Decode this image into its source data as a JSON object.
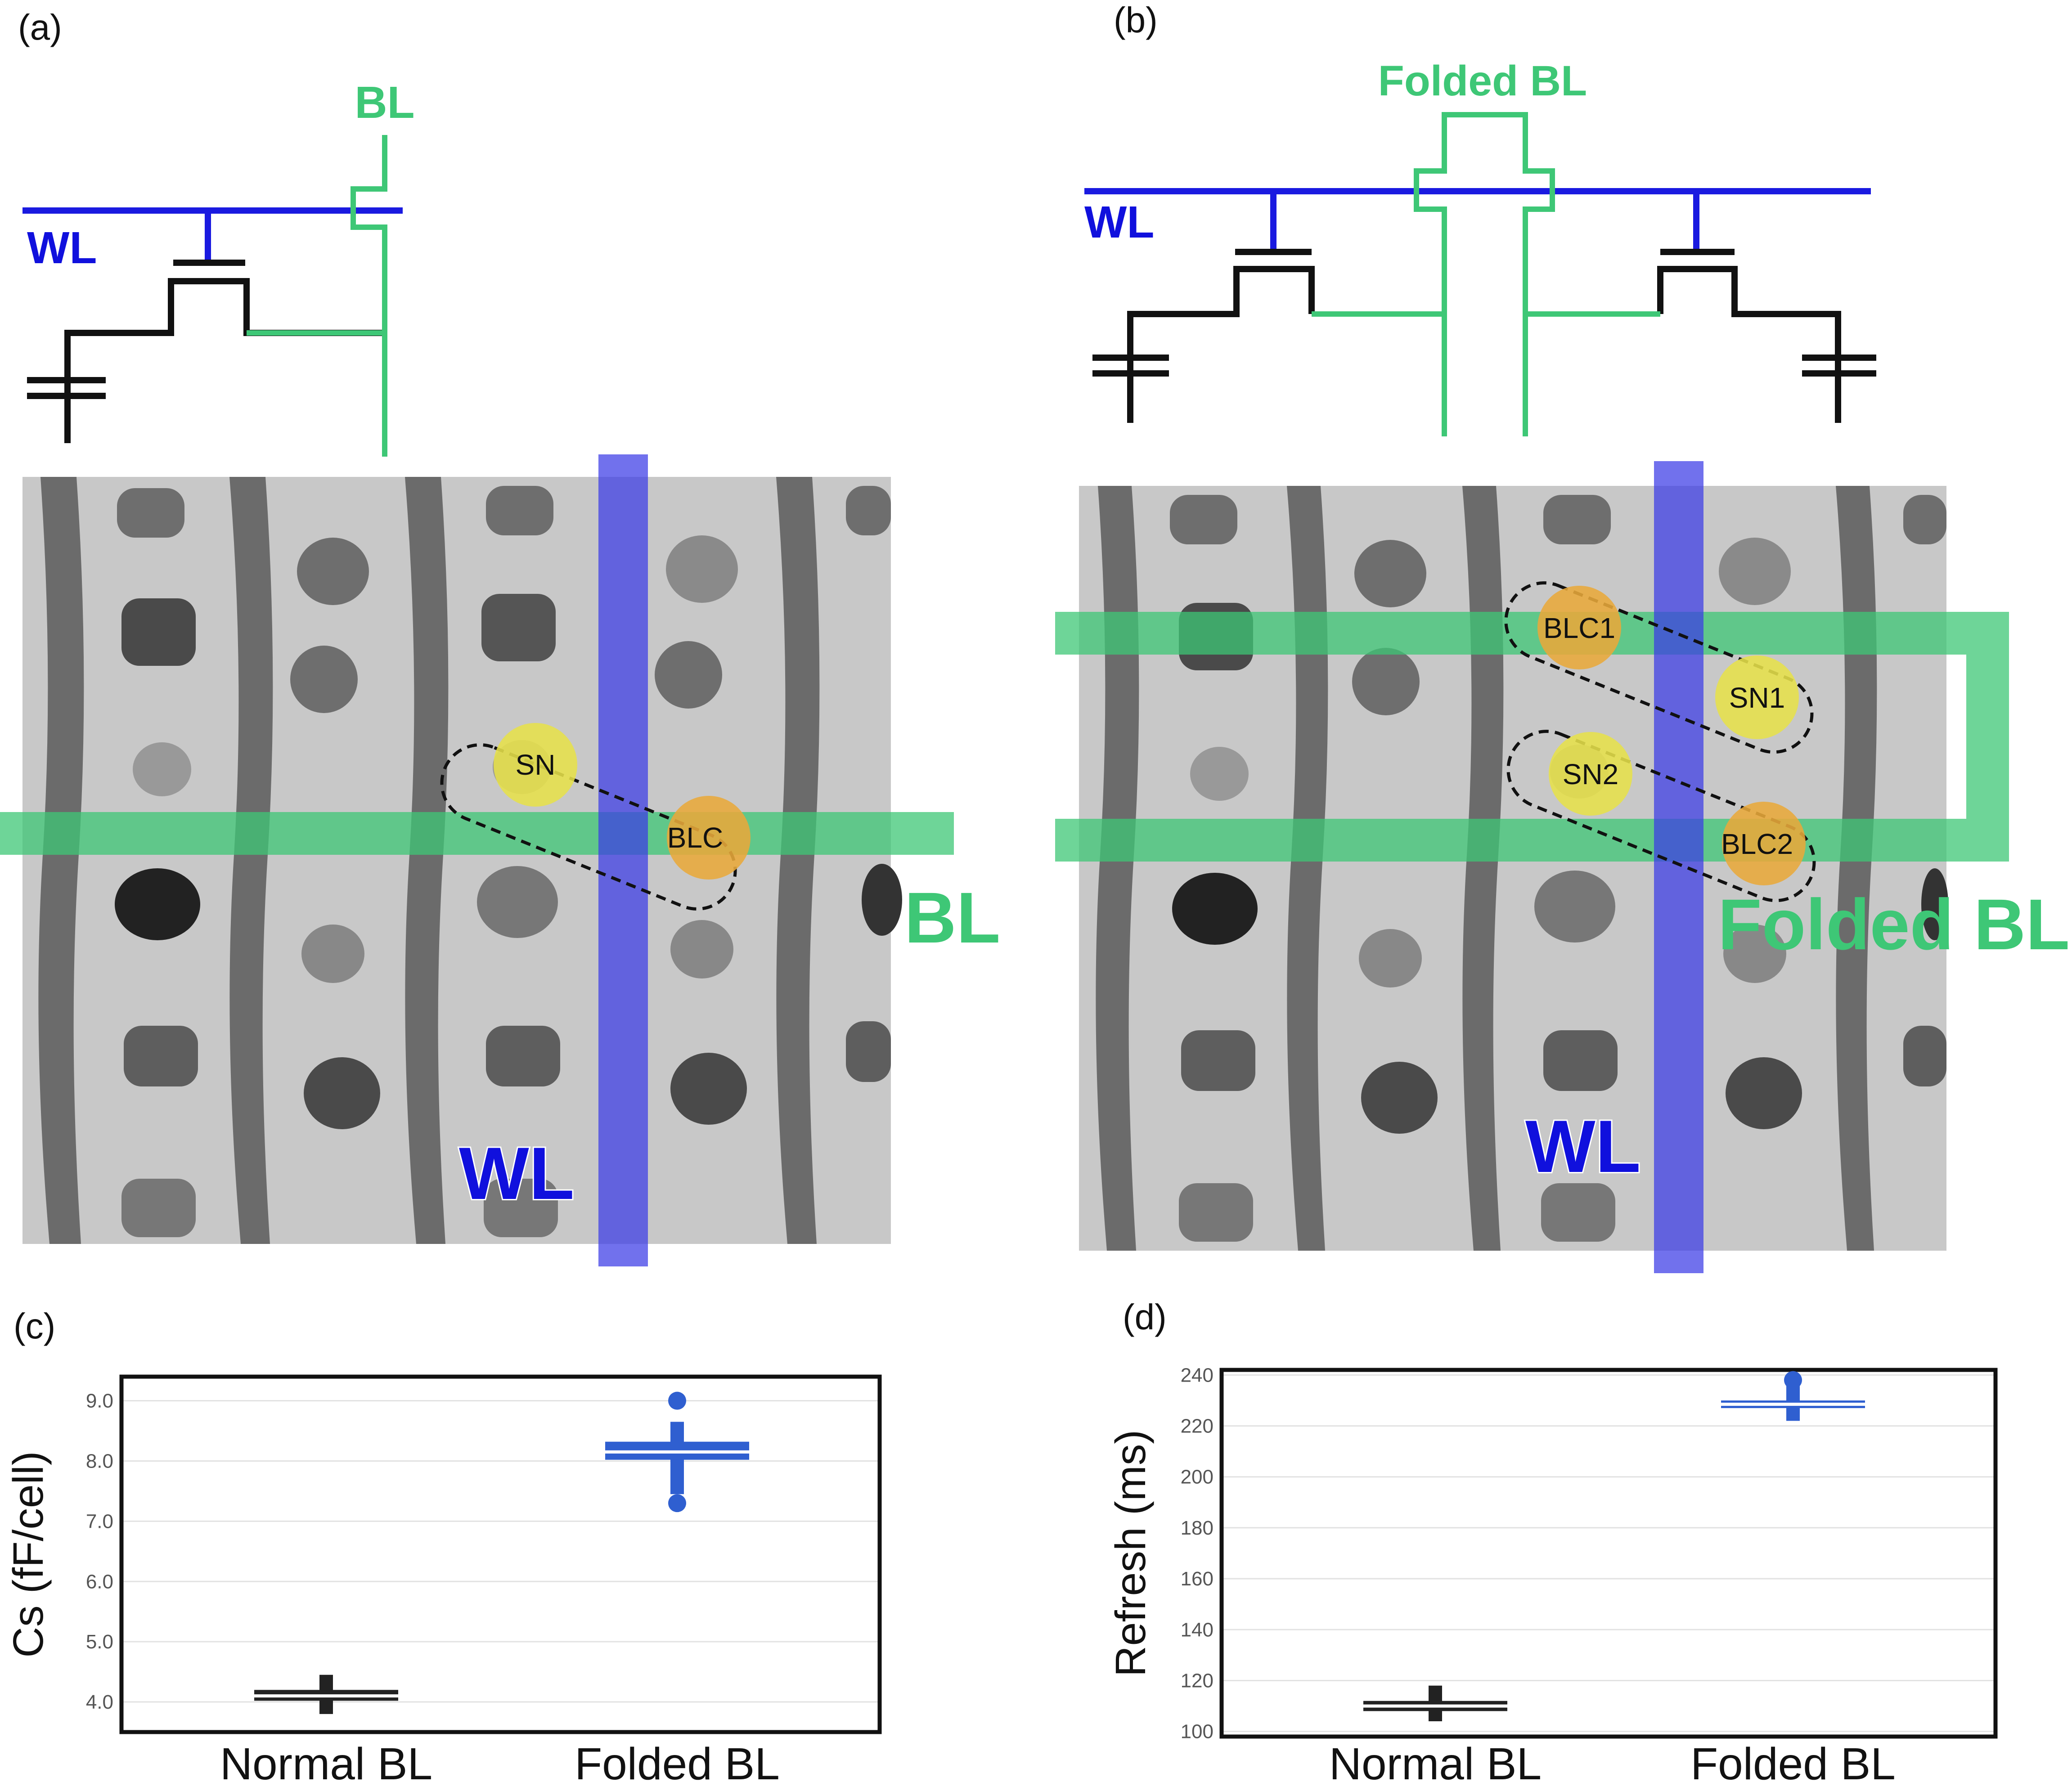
{
  "panels": {
    "a": {
      "label": "(a)",
      "schematic": {
        "bl_label": "BL",
        "wl_label": "WL"
      },
      "micrograph": {
        "sn_label": "SN",
        "blc_label": "BLC",
        "bl_label": "BL",
        "wl_label": "WL"
      }
    },
    "b": {
      "label": "(b)",
      "schematic": {
        "bl_label": "Folded BL",
        "wl_label": "WL"
      },
      "micrograph": {
        "blc1_label": "BLC1",
        "sn1_label": "SN1",
        "sn2_label": "SN2",
        "blc2_label": "BLC2",
        "bl_label": "Folded BL",
        "wl_label": "WL"
      }
    },
    "c": {
      "label": "(c)"
    },
    "d": {
      "label": "(d)"
    }
  },
  "colors": {
    "bitline_green": "#3ec776",
    "wordline_blue": "#1a1ae0",
    "wl_overlay": "#3a3ae6",
    "node_yellow": "#e6e04a",
    "contact_orange": "#e8a83a",
    "normal_series": "#222222",
    "folded_series": "#2f5fd0"
  },
  "chart_data": [
    {
      "type": "box",
      "panel": "(c)",
      "ylabel": "Cs (fF/cell)",
      "categories": [
        "Normal BL",
        "Folded BL"
      ],
      "yticks": [
        "4.0",
        "5.0",
        "6.0",
        "7.0",
        "8.0",
        "9.0"
      ],
      "ylim": [
        3.5,
        9.4
      ],
      "grid": true,
      "series": [
        {
          "name": "Normal BL",
          "median": 4.1,
          "q1": 4.02,
          "q3": 4.2,
          "whisker_low": 3.8,
          "whisker_high": 4.45,
          "outliers": []
        },
        {
          "name": "Folded BL",
          "median": 8.15,
          "q1": 8.02,
          "q3": 8.32,
          "whisker_low": 7.45,
          "whisker_high": 8.65,
          "outliers": [
            9.0,
            7.3
          ]
        }
      ]
    },
    {
      "type": "box",
      "panel": "(d)",
      "ylabel": "Refresh (ms)",
      "categories": [
        "Normal BL",
        "Folded BL"
      ],
      "yticks": [
        "100",
        "120",
        "140",
        "160",
        "180",
        "200",
        "220",
        "240"
      ],
      "ylim": [
        98,
        242
      ],
      "grid": true,
      "series": [
        {
          "name": "Normal BL",
          "median": 110,
          "q1": 108,
          "q3": 112,
          "whisker_low": 104,
          "whisker_high": 118,
          "outliers": []
        },
        {
          "name": "Folded BL",
          "median": 228.5,
          "q1": 227,
          "q3": 230,
          "whisker_low": 222,
          "whisker_high": 236,
          "outliers": [
            238
          ]
        }
      ]
    }
  ]
}
